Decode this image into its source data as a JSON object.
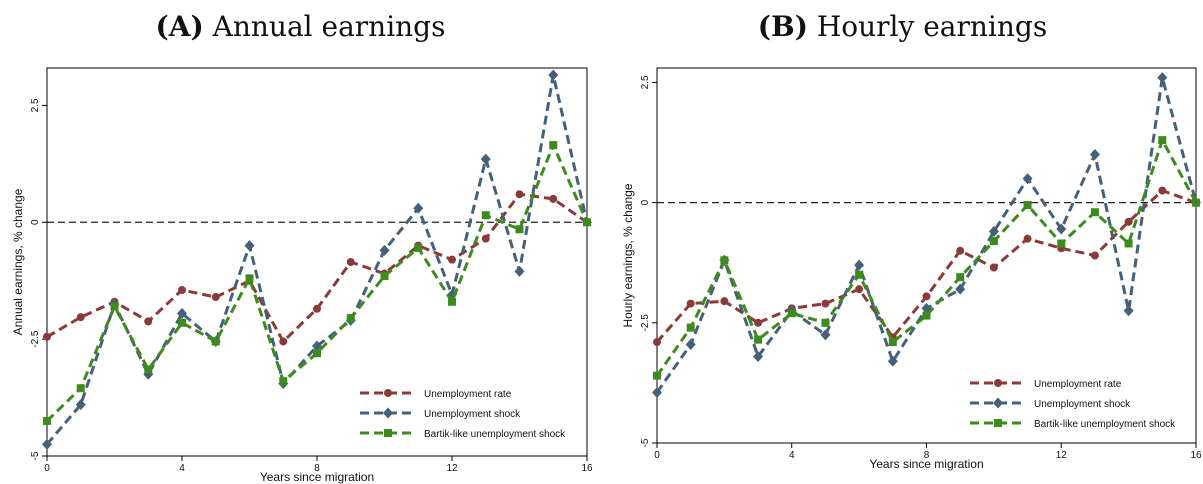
{
  "colors": {
    "unemployment_rate": "#8b3a3a",
    "unemployment_shock": "#46607a",
    "bartik_shock": "#3d8a1e",
    "axis": "#000000"
  },
  "chart_data": [
    {
      "type": "line",
      "panel_label": "(A)",
      "title": "Annual earnings",
      "xlabel": "Years since migration",
      "ylabel": "Annual earnings, % change",
      "x": [
        0,
        1,
        2,
        3,
        4,
        5,
        6,
        7,
        8,
        9,
        10,
        11,
        12,
        13,
        14,
        15,
        16
      ],
      "xlim": [
        0,
        16
      ],
      "ylim": [
        -5,
        3.3
      ],
      "xticks": [
        {
          "v": 0,
          "label": "0"
        },
        {
          "v": 4,
          "label": "4"
        },
        {
          "v": 8,
          "label": "8"
        },
        {
          "v": 12,
          "label": "12"
        },
        {
          "v": 16,
          "label": "16"
        }
      ],
      "yticks": [
        {
          "v": -5,
          "label": "-5"
        },
        {
          "v": -2.5,
          "label": "-2.5"
        },
        {
          "v": 0,
          "label": "0"
        },
        {
          "v": 2.5,
          "label": "2.5"
        }
      ],
      "reference_line": 0,
      "legend_position": "bottom-right",
      "series": [
        {
          "name": "Unemployment rate",
          "key": "unemployment_rate",
          "marker": "circle",
          "values": [
            -2.45,
            -2.03,
            -1.7,
            -2.12,
            -1.45,
            -1.6,
            -1.25,
            -2.55,
            -1.85,
            -0.85,
            -1.1,
            -0.5,
            -0.8,
            -0.35,
            0.6,
            0.5,
            0
          ]
        },
        {
          "name": "Unemployment shock",
          "key": "unemployment_shock",
          "marker": "diamond",
          "values": [
            -4.75,
            -3.9,
            -1.75,
            -3.25,
            -1.95,
            -2.55,
            -0.5,
            -3.45,
            -2.65,
            -2.1,
            -0.6,
            0.3,
            -1.55,
            1.35,
            -1.05,
            3.15,
            0
          ]
        },
        {
          "name": "Bartik-like unemployment shock",
          "key": "bartik_shock",
          "marker": "square",
          "values": [
            -4.25,
            -3.55,
            -1.8,
            -3.15,
            -2.15,
            -2.55,
            -1.2,
            -3.4,
            -2.8,
            -2.05,
            -1.15,
            -0.55,
            -1.7,
            0.15,
            -0.15,
            1.65,
            0
          ]
        }
      ]
    },
    {
      "type": "line",
      "panel_label": "(B)",
      "title": "Hourly earnings",
      "xlabel": "Years since migration",
      "ylabel": "Hourly earnings, % change",
      "x": [
        0,
        1,
        2,
        3,
        4,
        5,
        6,
        7,
        8,
        9,
        10,
        11,
        12,
        13,
        14,
        15,
        16
      ],
      "xlim": [
        0,
        16
      ],
      "ylim": [
        -5,
        2.8
      ],
      "xticks": [
        {
          "v": 0,
          "label": "0"
        },
        {
          "v": 4,
          "label": "4"
        },
        {
          "v": 8,
          "label": "8"
        },
        {
          "v": 12,
          "label": "12"
        },
        {
          "v": 16,
          "label": "16"
        }
      ],
      "yticks": [
        {
          "v": -5,
          "label": "-5"
        },
        {
          "v": -2.5,
          "label": "-2.5"
        },
        {
          "v": 0,
          "label": "0"
        },
        {
          "v": 2.5,
          "label": "2.5"
        }
      ],
      "reference_line": 0,
      "legend_position": "bottom-right",
      "series": [
        {
          "name": "Unemployment rate",
          "key": "unemployment_rate",
          "marker": "circle",
          "values": [
            -2.9,
            -2.1,
            -2.05,
            -2.5,
            -2.2,
            -2.1,
            -1.8,
            -2.8,
            -1.95,
            -1.0,
            -1.35,
            -0.75,
            -0.95,
            -1.1,
            -0.4,
            0.25,
            0
          ]
        },
        {
          "name": "Unemployment shock",
          "key": "unemployment_shock",
          "marker": "diamond",
          "values": [
            -3.95,
            -2.95,
            -1.2,
            -3.2,
            -2.25,
            -2.75,
            -1.3,
            -3.3,
            -2.2,
            -1.8,
            -0.6,
            0.5,
            -0.55,
            1.0,
            -2.25,
            2.6,
            0
          ]
        },
        {
          "name": "Bartik-like unemployment shock",
          "key": "bartik_shock",
          "marker": "square",
          "values": [
            -3.6,
            -2.6,
            -1.2,
            -2.85,
            -2.3,
            -2.5,
            -1.5,
            -2.9,
            -2.35,
            -1.55,
            -0.8,
            -0.05,
            -0.85,
            -0.2,
            -0.85,
            1.3,
            0
          ]
        }
      ]
    }
  ]
}
